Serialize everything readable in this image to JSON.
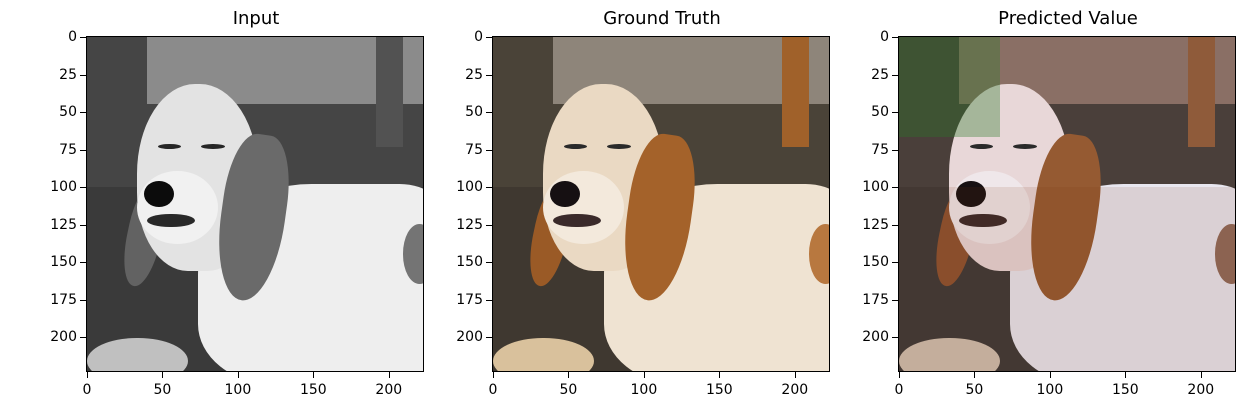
{
  "panels": [
    {
      "title": "Input",
      "variant": "gray"
    },
    {
      "title": "Ground Truth",
      "variant": "color"
    },
    {
      "title": "Predicted Value",
      "variant": "pred"
    }
  ],
  "axes": {
    "yticks": [
      "0",
      "25",
      "50",
      "75",
      "100",
      "125",
      "150",
      "175",
      "200"
    ],
    "xticks": [
      "0",
      "50",
      "100",
      "150",
      "200"
    ]
  }
}
